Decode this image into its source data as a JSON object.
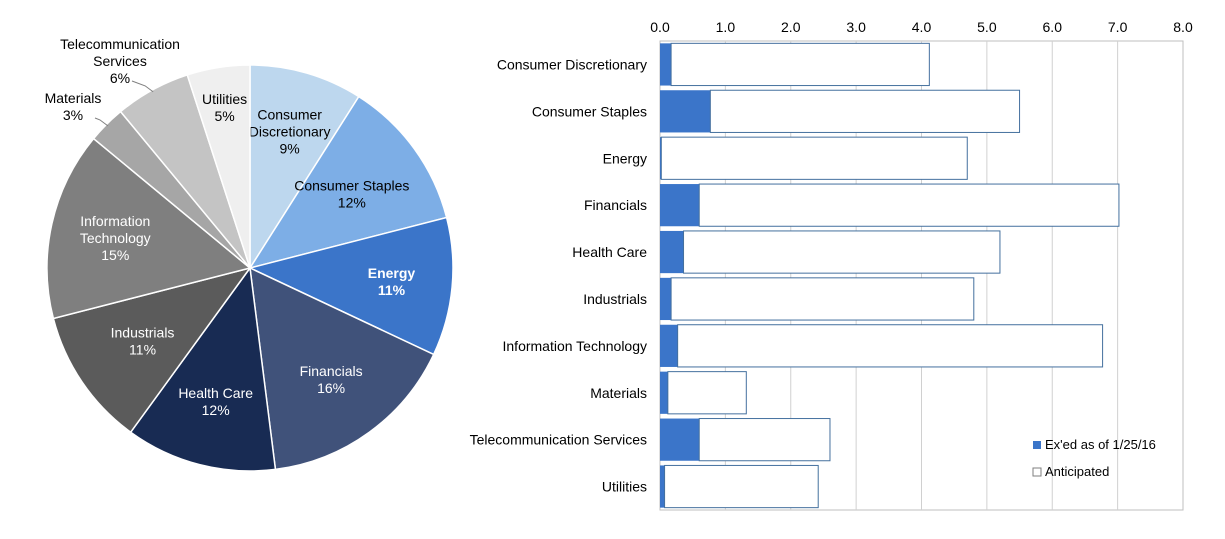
{
  "chart_data": [
    {
      "type": "pie",
      "title": "",
      "slices": [
        {
          "label": "Consumer Discretionary",
          "display": [
            "Consumer",
            "Discretionary"
          ],
          "pct_label": "9%",
          "value": 9,
          "color": "#bdd7ee",
          "text_color": "#000000",
          "bold": false
        },
        {
          "label": "Consumer Staples",
          "display": [
            "Consumer Staples"
          ],
          "pct_label": "12%",
          "value": 12,
          "color": "#7daee6",
          "text_color": "#000000",
          "bold": false
        },
        {
          "label": "Energy",
          "display": [
            "Energy"
          ],
          "pct_label": "11%",
          "value": 11,
          "color": "#3b75c9",
          "text_color": "#ffffff",
          "bold": true
        },
        {
          "label": "Financials",
          "display": [
            "Financials"
          ],
          "pct_label": "16%",
          "value": 16,
          "color": "#40527a",
          "text_color": "#ffffff",
          "bold": false
        },
        {
          "label": "Health Care",
          "display": [
            "Health Care"
          ],
          "pct_label": "12%",
          "value": 12,
          "color": "#182b53",
          "text_color": "#ffffff",
          "bold": false
        },
        {
          "label": "Industrials",
          "display": [
            "Industrials"
          ],
          "pct_label": "11%",
          "value": 11,
          "color": "#5b5b5b",
          "text_color": "#ffffff",
          "bold": false
        },
        {
          "label": "Information Technology",
          "display": [
            "Information",
            "Technology"
          ],
          "pct_label": "15%",
          "value": 15,
          "color": "#7f7f7f",
          "text_color": "#ffffff",
          "bold": false
        },
        {
          "label": "Materials",
          "display": [
            "Materials"
          ],
          "pct_label": "3%",
          "value": 3,
          "color": "#a6a6a6",
          "text_color": "#000000",
          "bold": false
        },
        {
          "label": "Telecommunication Services",
          "display": [
            "Telecommunication",
            "Services"
          ],
          "pct_label": "6%",
          "value": 6,
          "color": "#c4c4c4",
          "text_color": "#000000",
          "bold": false
        },
        {
          "label": "Utilities",
          "display": [
            "Utilities"
          ],
          "pct_label": "5%",
          "value": 5,
          "color": "#efefef",
          "text_color": "#000000",
          "bold": false
        }
      ]
    },
    {
      "type": "bar",
      "orientation": "horizontal",
      "stacked": true,
      "title": "",
      "xlabel": "",
      "ylabel": "",
      "xlim": [
        0,
        8
      ],
      "x_ticks": [
        "0.0",
        "1.0",
        "2.0",
        "3.0",
        "4.0",
        "5.0",
        "6.0",
        "7.0",
        "8.0"
      ],
      "x_axis_position": "top",
      "grid": "vertical",
      "legend_position": "bottom-right",
      "categories": [
        "Consumer Discretionary",
        "Consumer Staples",
        "Energy",
        "Financials",
        "Health Care",
        "Industrials",
        "Information Technology",
        "Materials",
        "Telecommunication Services",
        "Utilities"
      ],
      "series": [
        {
          "name": "Ex'ed as of 1/25/16",
          "color": "#3b75c9",
          "values": [
            0.17,
            0.77,
            0.02,
            0.6,
            0.36,
            0.17,
            0.27,
            0.12,
            0.6,
            0.07
          ]
        },
        {
          "name": "Anticipated",
          "color": "#ffffff",
          "stroke": "#44709e",
          "values": [
            3.95,
            4.73,
            4.68,
            6.42,
            4.84,
            4.63,
            6.5,
            1.2,
            2.0,
            2.35
          ]
        }
      ]
    }
  ]
}
